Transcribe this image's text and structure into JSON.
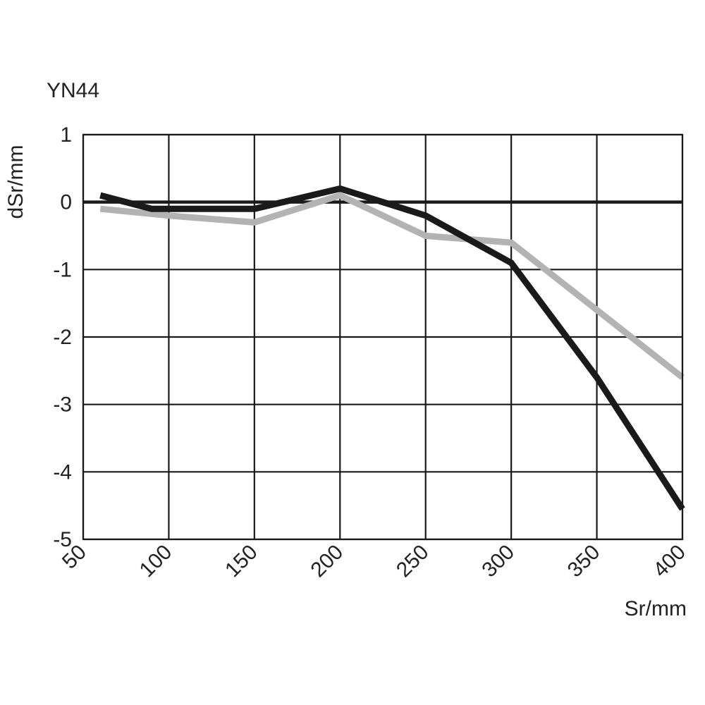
{
  "chart_data": {
    "type": "line",
    "title": "YN44",
    "xlabel": "Sr/mm",
    "ylabel": "dSr/mm",
    "xlim": [
      50,
      400
    ],
    "ylim": [
      -5,
      1
    ],
    "x_ticks": [
      50,
      100,
      150,
      200,
      250,
      300,
      350,
      400
    ],
    "y_ticks": [
      1,
      0,
      -1,
      -2,
      -3,
      -4,
      -5
    ],
    "x_tick_labels": [
      "50",
      "100",
      "150",
      "200",
      "250",
      "300",
      "350",
      "400"
    ],
    "y_tick_labels": [
      "1",
      "0",
      "-1",
      "-2",
      "-3",
      "-4",
      "-5"
    ],
    "grid": true,
    "legend": "none",
    "series": [
      {
        "color": "#1a1a1a",
        "x": [
          60,
          90,
          150,
          200,
          250,
          300,
          350,
          400
        ],
        "y": [
          0.1,
          -0.1,
          -0.1,
          0.2,
          -0.2,
          -0.9,
          -2.6,
          -4.55
        ]
      },
      {
        "color": "#b3b3b3",
        "x": [
          60,
          100,
          150,
          200,
          250,
          300,
          350,
          400
        ],
        "y": [
          -0.1,
          -0.2,
          -0.3,
          0.1,
          -0.5,
          -0.6,
          -1.6,
          -2.6
        ]
      }
    ]
  }
}
